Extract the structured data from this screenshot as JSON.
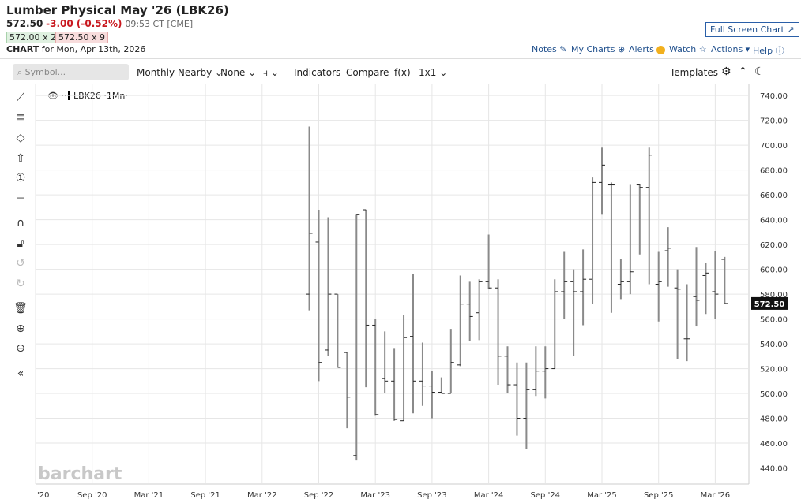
{
  "header": {
    "title": "Lumber Physical May '26 (LBK26)",
    "last": "572.50",
    "change": "-3.00 (-0.52%)",
    "time": "09:53 CT [CME]",
    "bid": "572.00 x 2",
    "ask": "572.50 x 9",
    "chart_label": "CHART",
    "chart_date": "for Mon, Apr 13th, 2026",
    "full_screen": "Full Screen Chart"
  },
  "links": [
    "Notes",
    "My Charts",
    "Alerts",
    "Watch",
    "Actions",
    "Help"
  ],
  "toolbar": {
    "search": "Symbol...",
    "items": [
      "Monthly Nearby",
      "None",
      "Indicators",
      "Compare",
      "f(x)",
      "1x1"
    ],
    "templates": "Templates"
  },
  "legend": "LBK26 ·1Mn·",
  "watermark": "barchart",
  "chart_data": {
    "type": "ohlc",
    "categories": [
      "'20",
      null,
      null,
      null,
      null,
      null,
      "Sep '20",
      null,
      null,
      null,
      null,
      null,
      "Mar '21",
      null,
      null,
      null,
      null,
      null,
      "Sep '21",
      null,
      null,
      null,
      null,
      null,
      "Mar '22",
      null,
      null,
      null,
      null,
      null,
      "Sep '22",
      null,
      null,
      null,
      null,
      null,
      "Mar '23",
      null,
      null,
      null,
      null,
      null,
      "Sep '23",
      null,
      null,
      null,
      null,
      null,
      "Mar '24",
      null,
      null,
      null,
      null,
      null,
      "Sep '24",
      null,
      null,
      null,
      null,
      null,
      "Mar '25",
      null,
      null,
      null,
      null,
      null,
      "Sep '25",
      null,
      null,
      null,
      null,
      null,
      "Mar '26",
      null
    ],
    "open": [
      null,
      null,
      null,
      null,
      null,
      null,
      null,
      null,
      null,
      null,
      null,
      null,
      null,
      null,
      null,
      null,
      null,
      null,
      null,
      null,
      null,
      null,
      null,
      null,
      null,
      null,
      null,
      null,
      null,
      580,
      622,
      535,
      580,
      533,
      450,
      648,
      555,
      512,
      510,
      478,
      546,
      510,
      506,
      501,
      500,
      523,
      572,
      565,
      590,
      585,
      530,
      507,
      480,
      503,
      518,
      520,
      582,
      590,
      582,
      592,
      670,
      668,
      588,
      590,
      668,
      666,
      588,
      615,
      585,
      544,
      578,
      595,
      582,
      608
    ],
    "high": [
      null,
      null,
      null,
      null,
      null,
      null,
      null,
      null,
      null,
      null,
      null,
      null,
      null,
      null,
      null,
      null,
      null,
      null,
      null,
      null,
      null,
      null,
      null,
      null,
      null,
      null,
      null,
      null,
      null,
      715,
      648,
      642,
      580,
      533,
      644,
      648,
      560,
      550,
      536,
      563,
      596,
      541,
      518,
      513,
      552,
      595,
      590,
      592,
      628,
      592,
      538,
      525,
      525,
      538,
      538,
      592,
      614,
      600,
      616,
      674,
      698,
      670,
      608,
      668,
      669,
      698,
      614,
      634,
      600,
      588,
      618,
      605,
      615,
      610
    ],
    "low": [
      null,
      null,
      null,
      null,
      null,
      null,
      null,
      null,
      null,
      null,
      null,
      null,
      null,
      null,
      null,
      null,
      null,
      null,
      null,
      null,
      null,
      null,
      null,
      null,
      null,
      null,
      null,
      null,
      null,
      567,
      510,
      530,
      521,
      472,
      446,
      505,
      482,
      500,
      478,
      478,
      484,
      490,
      480,
      500,
      500,
      522,
      542,
      543,
      584,
      507,
      500,
      466,
      455,
      498,
      496,
      520,
      560,
      530,
      555,
      572,
      644,
      565,
      576,
      580,
      612,
      588,
      558,
      586,
      528,
      526,
      554,
      564,
      560,
      572
    ],
    "close": [
      null,
      null,
      null,
      null,
      null,
      null,
      null,
      null,
      null,
      null,
      null,
      null,
      null,
      null,
      null,
      null,
      null,
      null,
      null,
      null,
      null,
      null,
      null,
      null,
      null,
      null,
      null,
      null,
      null,
      629,
      525,
      580,
      521,
      497,
      644,
      555,
      483,
      510,
      479,
      545,
      510,
      506,
      501,
      500,
      525,
      572,
      562,
      590,
      585,
      530,
      507,
      480,
      503,
      518,
      520,
      582,
      590,
      582,
      592,
      670,
      684,
      668,
      590,
      598,
      666,
      692,
      590,
      617,
      584,
      544,
      575,
      597,
      580,
      572.5
    ],
    "ylim": [
      427,
      749
    ],
    "yticks": [
      {
        "value": 440,
        "label": "440.00"
      },
      {
        "value": 460,
        "label": "460.00"
      },
      {
        "value": 480,
        "label": "480.00"
      },
      {
        "value": 500,
        "label": "500.00"
      },
      {
        "value": 520,
        "label": "520.00"
      },
      {
        "value": 540,
        "label": "540.00"
      },
      {
        "value": 560,
        "label": "560.00"
      },
      {
        "value": 580,
        "label": "580.00"
      },
      {
        "value": 600,
        "label": "600.00"
      },
      {
        "value": 620,
        "label": "620.00"
      },
      {
        "value": 640,
        "label": "640.00"
      },
      {
        "value": 660,
        "label": "660.00"
      },
      {
        "value": 680,
        "label": "680.00"
      },
      {
        "value": 700,
        "label": "700.00"
      },
      {
        "value": 720,
        "label": "720.00"
      },
      {
        "value": 740,
        "label": "740.00"
      }
    ],
    "grid": true,
    "color": "#8a8a8a"
  }
}
